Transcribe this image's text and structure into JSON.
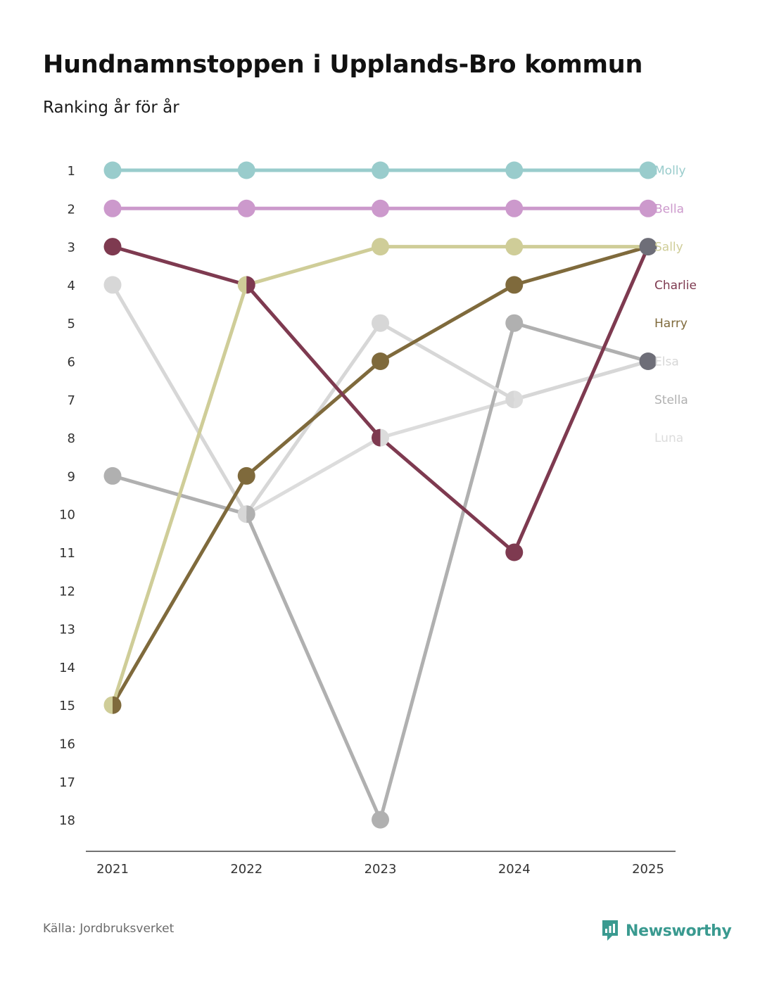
{
  "title": "Hundnamnstoppen i Upplands-Bro kommun",
  "subtitle": "Ranking år för år",
  "source": "Källa: Jordbruksverket",
  "brand": "Newsworthy",
  "chart_data": {
    "type": "line",
    "subtype": "bump",
    "title": "Hundnamnstoppen i Upplands-Bro kommun",
    "subtitle": "Ranking år för år",
    "x": [
      "2021",
      "2022",
      "2023",
      "2024",
      "2025"
    ],
    "yticks": [
      "1",
      "2",
      "3",
      "4",
      "5",
      "6",
      "7",
      "8",
      "9",
      "10",
      "11",
      "12",
      "13",
      "14",
      "15",
      "16",
      "17",
      "18"
    ],
    "ylim": [
      1,
      18
    ],
    "y_inverted": true,
    "xlabel": "",
    "ylabel": "",
    "series": [
      {
        "name": "Luna",
        "color": "#dcdcdc",
        "values": [
          null,
          10,
          8,
          7,
          6
        ]
      },
      {
        "name": "Stella",
        "color": "#b0b0b0",
        "values": [
          9,
          10,
          18,
          5,
          6
        ]
      },
      {
        "name": "Elsa",
        "color": "#d7d7d7",
        "values": [
          4,
          10,
          5,
          7,
          6
        ]
      },
      {
        "name": "Harry",
        "color": "#7f6a3c",
        "values": [
          15,
          9,
          6,
          4,
          3
        ]
      },
      {
        "name": "Charlie",
        "color": "#7e3a50",
        "values": [
          3,
          4,
          8,
          11,
          3
        ]
      },
      {
        "name": "Sally",
        "color": "#cfcd98",
        "values": [
          15,
          4,
          3,
          3,
          3
        ]
      },
      {
        "name": "Bella",
        "color": "#cc99cc",
        "values": [
          2,
          2,
          2,
          2,
          2
        ]
      },
      {
        "name": "Molly",
        "color": "#99cccc",
        "values": [
          1,
          1,
          1,
          1,
          1
        ]
      }
    ],
    "labels": [
      {
        "name": "Molly",
        "color": "#99cccc",
        "rank": 1
      },
      {
        "name": "Bella",
        "color": "#cc99cc",
        "rank": 2
      },
      {
        "name": "Sally",
        "color": "#cfcd98",
        "rank": 3
      },
      {
        "name": "Charlie",
        "color": "#7e3a50",
        "rank": 4
      },
      {
        "name": "Harry",
        "color": "#7f6a3c",
        "rank": 5
      },
      {
        "name": "Elsa",
        "color": "#d7d7d7",
        "rank": 6
      },
      {
        "name": "Stella",
        "color": "#b0b0b0",
        "rank": 7
      },
      {
        "name": "Luna",
        "color": "#dcdcdc",
        "rank": 8
      }
    ],
    "highlight_color": "#6e6e78"
  }
}
